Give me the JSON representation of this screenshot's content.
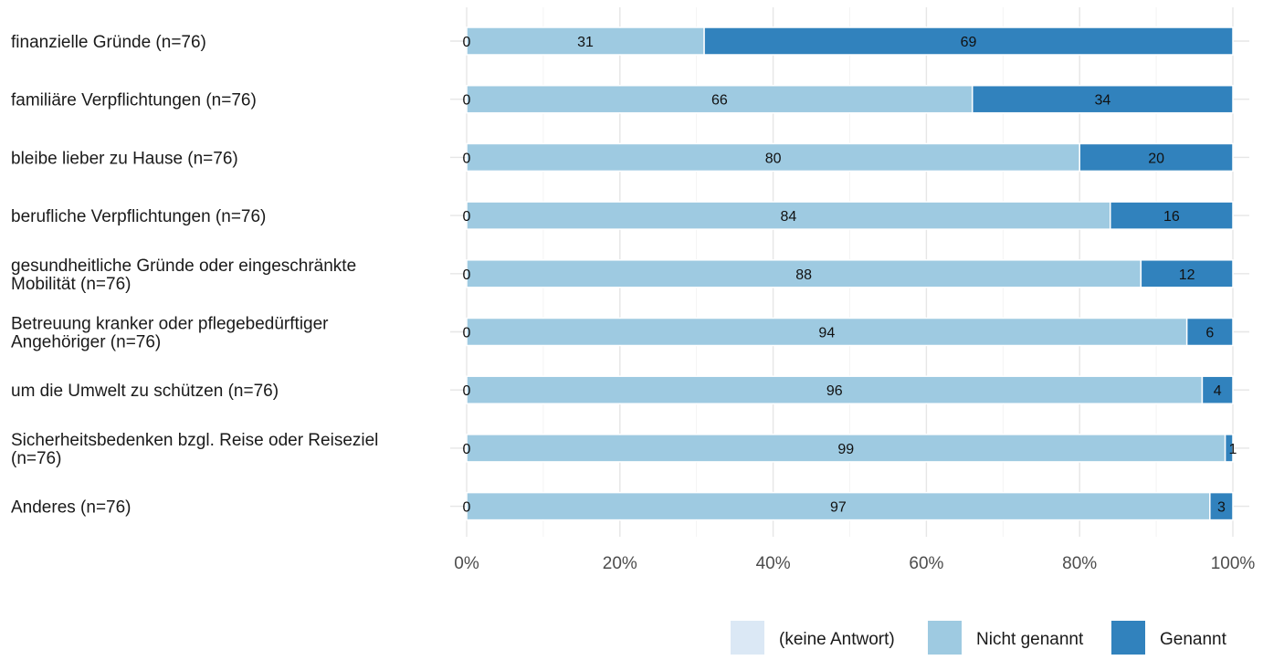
{
  "chart_data": {
    "type": "bar",
    "orientation": "horizontal",
    "stacked": true,
    "percent_scale": true,
    "categories": [
      "finanzielle Gründe (n=76)",
      "familiäre Verpflichtungen (n=76)",
      "bleibe lieber zu Hause (n=76)",
      "berufliche Verpflichtungen (n=76)",
      "gesundheitliche Gründe oder eingeschränkte\nMobilität (n=76)",
      "Betreuung kranker oder pflegebedürftiger\nAngehöriger (n=76)",
      "um die Umwelt zu schützen (n=76)",
      "Sicherheitsbedenken bzgl. Reise oder Reiseziel\n(n=76)",
      "Anderes (n=76)"
    ],
    "series": [
      {
        "name": "(keine Antwort)",
        "color": "#dbe8f5",
        "values": [
          0,
          0,
          0,
          0,
          0,
          0,
          0,
          0,
          0
        ]
      },
      {
        "name": "Nicht genannt",
        "color": "#9ecae1",
        "values": [
          31,
          66,
          80,
          84,
          88,
          94,
          96,
          99,
          97
        ]
      },
      {
        "name": "Genannt",
        "color": "#3182bd",
        "values": [
          69,
          34,
          20,
          16,
          12,
          6,
          4,
          1,
          3
        ]
      }
    ],
    "xlim": [
      0,
      100
    ],
    "xticks": [
      "0%",
      "20%",
      "40%",
      "60%",
      "80%",
      "100%"
    ],
    "xlabel": "",
    "ylabel": "",
    "grid": true,
    "legend_position": "bottom-right"
  }
}
